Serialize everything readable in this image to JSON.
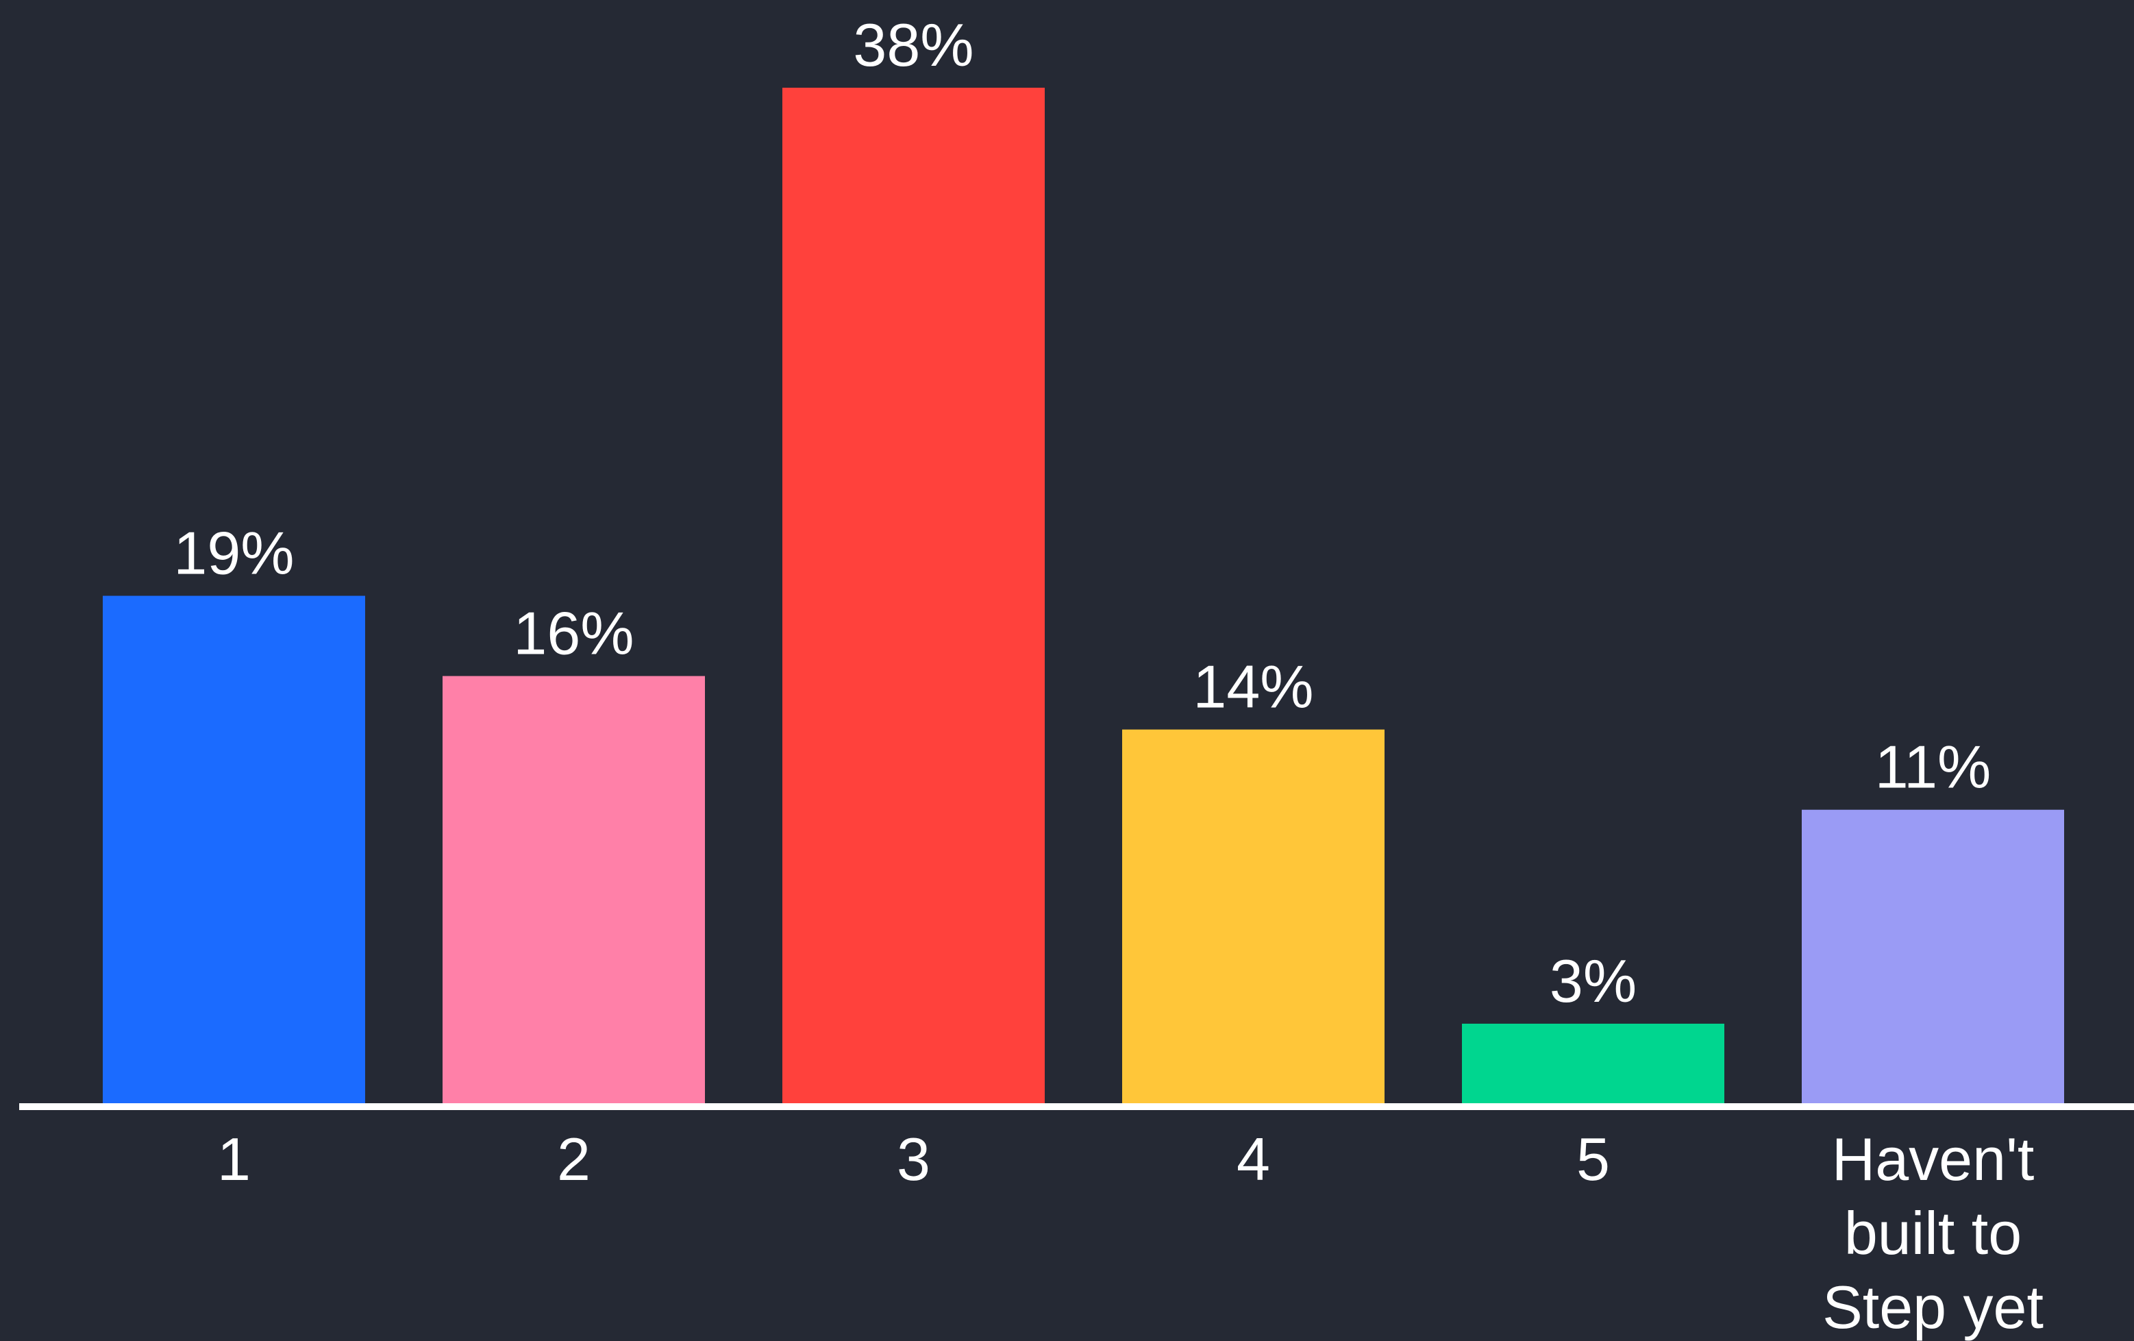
{
  "chart_data": {
    "type": "bar",
    "categories": [
      "1",
      "2",
      "3",
      "4",
      "5",
      "Haven't built to Step yet"
    ],
    "category_lines": [
      [
        "1"
      ],
      [
        "2"
      ],
      [
        "3"
      ],
      [
        "4"
      ],
      [
        "5"
      ],
      [
        "Haven't",
        "built to",
        "Step yet"
      ]
    ],
    "values": [
      19,
      16,
      38,
      14,
      3,
      11
    ],
    "data_labels": [
      "19%",
      "16%",
      "38%",
      "14%",
      "3%",
      "11%"
    ],
    "colors": [
      "#1b6bff",
      "#ff80a8",
      "#ff413c",
      "#ffc639",
      "#00d68f",
      "#9a9bf5"
    ],
    "title": "",
    "xlabel": "",
    "ylabel": "",
    "ylim": [
      0,
      38
    ],
    "grid": false,
    "legend": "none"
  },
  "style": {
    "background": "#252934",
    "axis_color": "#ffffff",
    "text_color": "#ffffff"
  }
}
